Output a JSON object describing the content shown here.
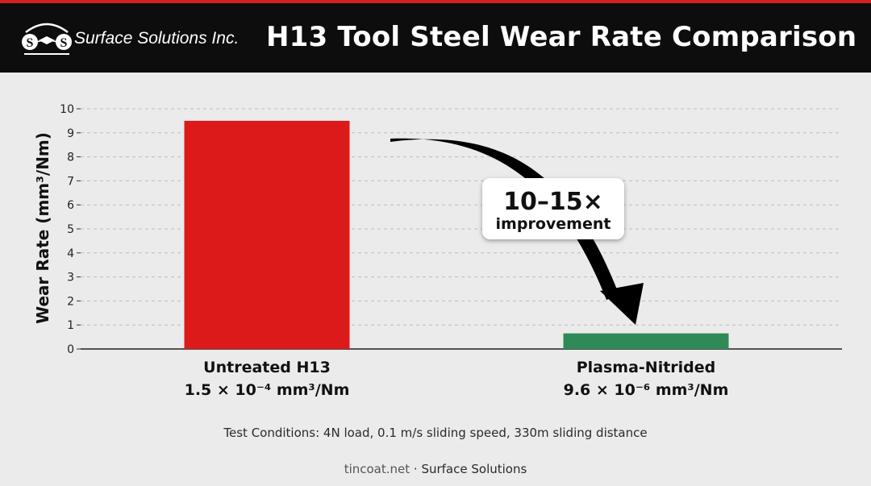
{
  "header": {
    "company": "Surface Solutions Inc.",
    "logo_letters": [
      "S",
      "S"
    ],
    "title": "H13 Tool Steel Wear Rate Comparison"
  },
  "chart_data": {
    "type": "bar",
    "ylabel": "Wear Rate (mm³/Nm)",
    "ylim": [
      0,
      10
    ],
    "yticks": [
      0,
      1,
      2,
      3,
      4,
      5,
      6,
      7,
      8,
      9,
      10
    ],
    "grid": true,
    "categories": [
      "Untreated H13",
      "Plasma-Nitrided"
    ],
    "values": [
      9.5,
      0.65
    ],
    "value_labels": [
      "1.5 × 10⁻⁴ mm³/Nm",
      "9.6 × 10⁻⁶ mm³/Nm"
    ],
    "colors": [
      "#dd1a1a",
      "#2e8b57"
    ],
    "annotation": {
      "headline": "10–15×",
      "subtext": "improvement"
    }
  },
  "footnote": "Test Conditions: 4N load, 0.1 m/s sliding speed, 330m sliding distance",
  "credit": {
    "domain": "tincoat.net",
    "separator": " · ",
    "name": "Surface Solutions"
  }
}
